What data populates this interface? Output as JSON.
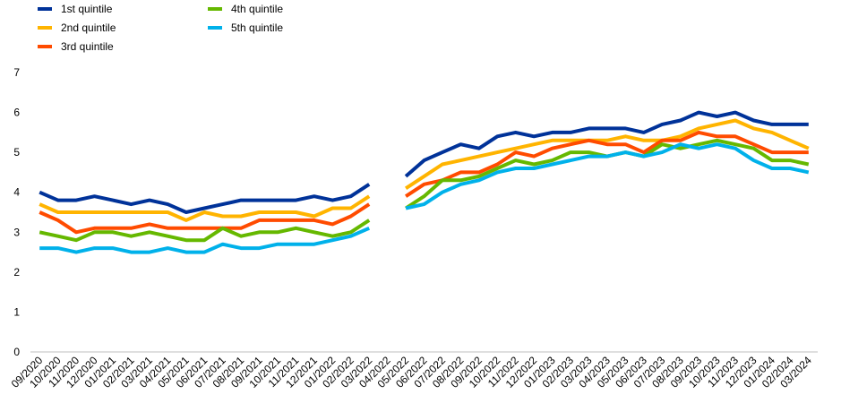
{
  "chart_data": {
    "type": "line",
    "categories": [
      "09/2020",
      "10/2020",
      "11/2020",
      "12/2020",
      "01/2021",
      "02/2021",
      "03/2021",
      "04/2021",
      "05/2021",
      "06/2021",
      "07/2021",
      "08/2021",
      "09/2021",
      "10/2021",
      "11/2021",
      "12/2021",
      "01/2022",
      "02/2022",
      "03/2022",
      "04/2022",
      "05/2022",
      "06/2022",
      "07/2022",
      "08/2022",
      "09/2022",
      "10/2022",
      "11/2022",
      "12/2022",
      "01/2023",
      "02/2023",
      "03/2023",
      "04/2023",
      "05/2023",
      "06/2023",
      "07/2023",
      "08/2023",
      "09/2023",
      "10/2023",
      "11/2023",
      "12/2023",
      "01/2024",
      "02/2024",
      "03/2024"
    ],
    "series": [
      {
        "name": "1st quintile",
        "color": "#003299",
        "values": [
          4.0,
          3.8,
          3.8,
          3.9,
          3.8,
          3.7,
          3.8,
          3.7,
          3.5,
          3.6,
          3.7,
          3.8,
          3.8,
          3.8,
          3.8,
          3.9,
          3.8,
          3.9,
          4.2,
          null,
          4.4,
          4.8,
          5.0,
          5.2,
          5.1,
          5.4,
          5.5,
          5.4,
          5.5,
          5.5,
          5.6,
          5.6,
          5.6,
          5.5,
          5.7,
          5.8,
          6.0,
          5.9,
          6.0,
          5.8,
          5.7,
          5.7,
          5.7
        ]
      },
      {
        "name": "2nd quintile",
        "color": "#ffb400",
        "values": [
          3.7,
          3.5,
          3.5,
          3.5,
          3.5,
          3.5,
          3.5,
          3.5,
          3.3,
          3.5,
          3.4,
          3.4,
          3.5,
          3.5,
          3.5,
          3.4,
          3.6,
          3.6,
          3.9,
          null,
          4.1,
          4.4,
          4.7,
          4.8,
          4.9,
          5.0,
          5.1,
          5.2,
          5.3,
          5.3,
          5.3,
          5.3,
          5.4,
          5.3,
          5.3,
          5.4,
          5.6,
          5.7,
          5.8,
          5.6,
          5.5,
          5.3,
          5.1
        ]
      },
      {
        "name": "3rd quintile",
        "color": "#ff4b00",
        "values": [
          3.5,
          3.3,
          3.0,
          3.1,
          3.1,
          3.1,
          3.2,
          3.1,
          3.1,
          3.1,
          3.1,
          3.1,
          3.3,
          3.3,
          3.3,
          3.3,
          3.2,
          3.4,
          3.7,
          null,
          3.9,
          4.2,
          4.3,
          4.5,
          4.5,
          4.7,
          5.0,
          4.9,
          5.1,
          5.2,
          5.3,
          5.2,
          5.2,
          5.0,
          5.3,
          5.3,
          5.5,
          5.4,
          5.4,
          5.2,
          5.0,
          5.0,
          5.0
        ]
      },
      {
        "name": "4th quintile",
        "color": "#65b800",
        "values": [
          3.0,
          2.9,
          2.8,
          3.0,
          3.0,
          2.9,
          3.0,
          2.9,
          2.8,
          2.8,
          3.1,
          2.9,
          3.0,
          3.0,
          3.1,
          3.0,
          2.9,
          3.0,
          3.3,
          null,
          3.6,
          3.9,
          4.3,
          4.3,
          4.4,
          4.6,
          4.8,
          4.7,
          4.8,
          5.0,
          5.0,
          4.9,
          5.0,
          4.9,
          5.2,
          5.1,
          5.2,
          5.3,
          5.2,
          5.1,
          4.8,
          4.8,
          4.7
        ]
      },
      {
        "name": "5th quintile",
        "color": "#00b1ea",
        "values": [
          2.6,
          2.6,
          2.5,
          2.6,
          2.6,
          2.5,
          2.5,
          2.6,
          2.5,
          2.5,
          2.7,
          2.6,
          2.6,
          2.7,
          2.7,
          2.7,
          2.8,
          2.9,
          3.1,
          null,
          3.6,
          3.7,
          4.0,
          4.2,
          4.3,
          4.5,
          4.6,
          4.6,
          4.7,
          4.8,
          4.9,
          4.9,
          5.0,
          4.9,
          5.0,
          5.2,
          5.1,
          5.2,
          5.1,
          4.8,
          4.6,
          4.6,
          4.5
        ]
      }
    ],
    "ylim": [
      0,
      7
    ],
    "yticks": [
      0,
      1,
      2,
      3,
      4,
      5,
      6,
      7
    ],
    "grid": false
  }
}
